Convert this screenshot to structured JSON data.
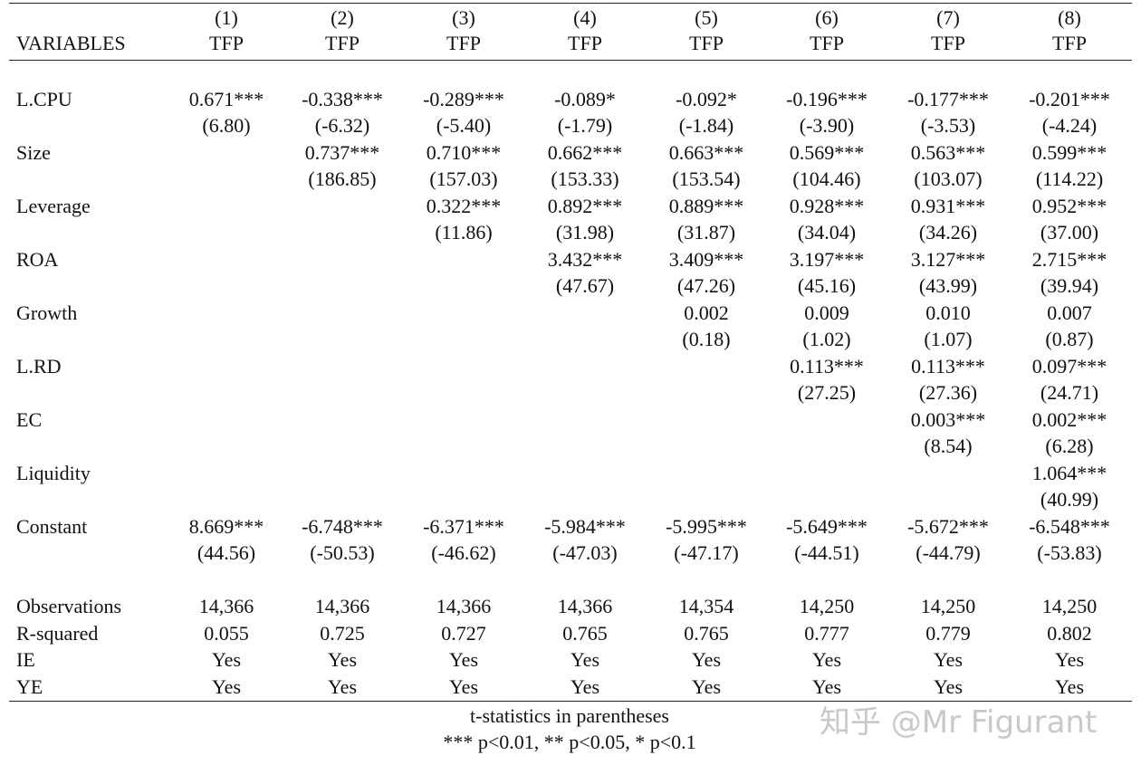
{
  "header": {
    "column_numbers": [
      "(1)",
      "(2)",
      "(3)",
      "(4)",
      "(5)",
      "(6)",
      "(7)",
      "(8)"
    ],
    "variables_label": "VARIABLES",
    "dependent_variables": [
      "TFP",
      "TFP",
      "TFP",
      "TFP",
      "TFP",
      "TFP",
      "TFP",
      "TFP"
    ]
  },
  "table": {
    "rows": [
      {
        "name": "L.CPU",
        "coef": [
          "0.671***",
          "-0.338***",
          "-0.289***",
          "-0.089*",
          "-0.092*",
          "-0.196***",
          "-0.177***",
          "-0.201***"
        ],
        "t": [
          "(6.80)",
          "(-6.32)",
          "(-5.40)",
          "(-1.79)",
          "(-1.84)",
          "(-3.90)",
          "(-3.53)",
          "(-4.24)"
        ]
      },
      {
        "name": "Size",
        "coef": [
          null,
          "0.737***",
          "0.710***",
          "0.662***",
          "0.663***",
          "0.569***",
          "0.563***",
          "0.599***"
        ],
        "t": [
          null,
          "(186.85)",
          "(157.03)",
          "(153.33)",
          "(153.54)",
          "(104.46)",
          "(103.07)",
          "(114.22)"
        ]
      },
      {
        "name": "Leverage",
        "coef": [
          null,
          null,
          "0.322***",
          "0.892***",
          "0.889***",
          "0.928***",
          "0.931***",
          "0.952***"
        ],
        "t": [
          null,
          null,
          "(11.86)",
          "(31.98)",
          "(31.87)",
          "(34.04)",
          "(34.26)",
          "(37.00)"
        ]
      },
      {
        "name": "ROA",
        "coef": [
          null,
          null,
          null,
          "3.432***",
          "3.409***",
          "3.197***",
          "3.127***",
          "2.715***"
        ],
        "t": [
          null,
          null,
          null,
          "(47.67)",
          "(47.26)",
          "(45.16)",
          "(43.99)",
          "(39.94)"
        ]
      },
      {
        "name": "Growth",
        "coef": [
          null,
          null,
          null,
          null,
          "0.002",
          "0.009",
          "0.010",
          "0.007"
        ],
        "t": [
          null,
          null,
          null,
          null,
          "(0.18)",
          "(1.02)",
          "(1.07)",
          "(0.87)"
        ]
      },
      {
        "name": "L.RD",
        "coef": [
          null,
          null,
          null,
          null,
          null,
          "0.113***",
          "0.113***",
          "0.097***"
        ],
        "t": [
          null,
          null,
          null,
          null,
          null,
          "(27.25)",
          "(27.36)",
          "(24.71)"
        ]
      },
      {
        "name": "EC",
        "coef": [
          null,
          null,
          null,
          null,
          null,
          null,
          "0.003***",
          "0.002***"
        ],
        "t": [
          null,
          null,
          null,
          null,
          null,
          null,
          "(8.54)",
          "(6.28)"
        ]
      },
      {
        "name": "Liquidity",
        "coef": [
          null,
          null,
          null,
          null,
          null,
          null,
          null,
          "1.064***"
        ],
        "t": [
          null,
          null,
          null,
          null,
          null,
          null,
          null,
          "(40.99)"
        ]
      },
      {
        "name": "Constant",
        "coef": [
          "8.669***",
          "-6.748***",
          "-6.371***",
          "-5.984***",
          "-5.995***",
          "-5.649***",
          "-5.672***",
          "-6.548***"
        ],
        "t": [
          "(44.56)",
          "(-50.53)",
          "(-46.62)",
          "(-47.03)",
          "(-47.17)",
          "(-44.51)",
          "(-44.79)",
          "(-53.83)"
        ]
      }
    ],
    "stats": [
      {
        "name": "Observations",
        "values": [
          "14,366",
          "14,366",
          "14,366",
          "14,366",
          "14,354",
          "14,250",
          "14,250",
          "14,250"
        ]
      },
      {
        "name": "R-squared",
        "values": [
          "0.055",
          "0.725",
          "0.727",
          "0.765",
          "0.765",
          "0.777",
          "0.779",
          "0.802"
        ]
      },
      {
        "name": "IE",
        "values": [
          "Yes",
          "Yes",
          "Yes",
          "Yes",
          "Yes",
          "Yes",
          "Yes",
          "Yes"
        ]
      },
      {
        "name": "YE",
        "values": [
          "Yes",
          "Yes",
          "Yes",
          "Yes",
          "Yes",
          "Yes",
          "Yes",
          "Yes"
        ]
      }
    ]
  },
  "notes": [
    "t-statistics in parentheses",
    "*** p<0.01, ** p<0.05, * p<0.1"
  ],
  "watermark": "知乎 @Mr Figurant"
}
